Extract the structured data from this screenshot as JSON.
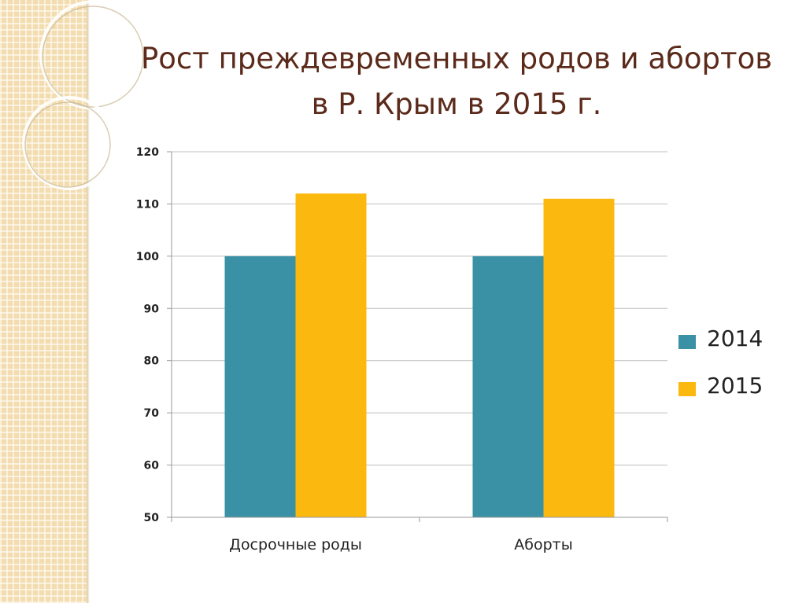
{
  "slide": {
    "title_line1": "Рост преждевременных родов и абортов",
    "title_line2": "в Р. Крым в 2015 г."
  },
  "colors": {
    "series_2014": "#3a91a6",
    "series_2015": "#fbb80f",
    "title": "#5b2a1a",
    "background_strip": "#f3ddb0"
  },
  "chart_data": {
    "type": "bar",
    "categories": [
      "Досрочные роды",
      "Аборты"
    ],
    "series": [
      {
        "name": "2014",
        "values": [
          100,
          100
        ]
      },
      {
        "name": "2015",
        "values": [
          112,
          111
        ]
      }
    ],
    "ylim": [
      50,
      120
    ],
    "yticks": [
      50,
      60,
      70,
      80,
      90,
      100,
      110,
      120
    ],
    "grid": true,
    "legend_position": "right"
  }
}
